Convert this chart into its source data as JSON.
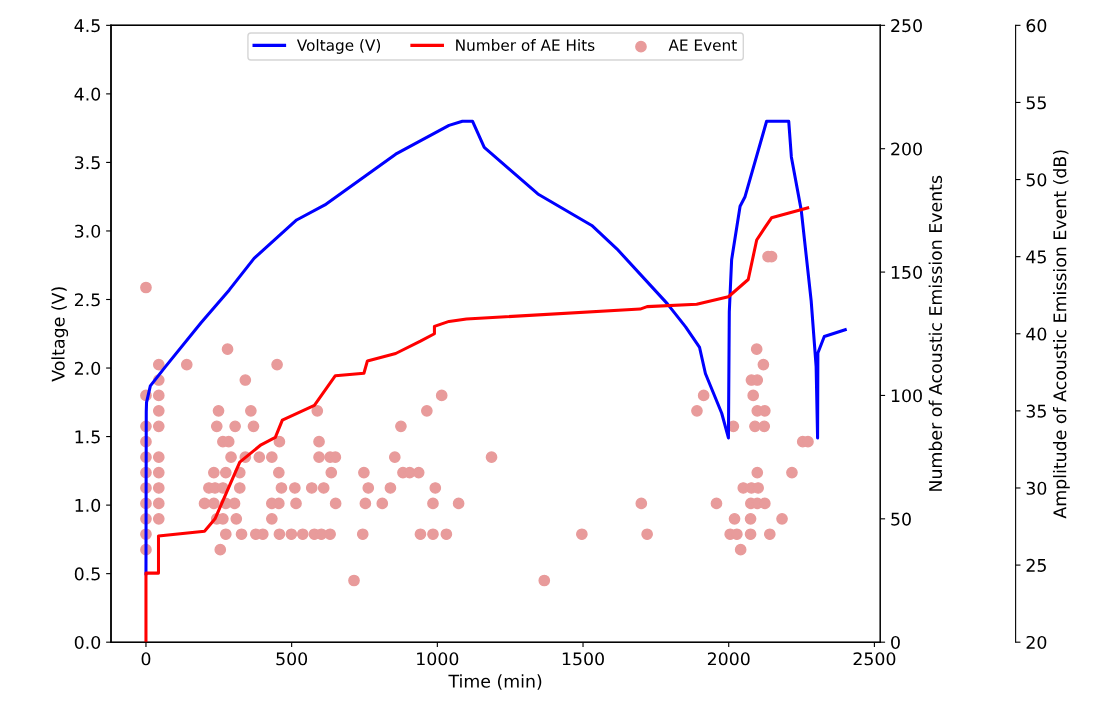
{
  "chart_data": {
    "type": "line",
    "xlabel": "Time (min)",
    "ylabel": "Voltage (V)",
    "y2label": "Number of Acoustic Emission Events",
    "y3label": "Amplitude of Acoustic Emission Event (dB)",
    "xlim": [
      -120,
      2520
    ],
    "xticks": [
      0,
      500,
      1000,
      1500,
      2000,
      2500
    ],
    "ylim": [
      0,
      4.5
    ],
    "yticks": [
      {
        "value": 0,
        "label": "0.0"
      },
      {
        "value": 0.5,
        "label": "0.5"
      },
      {
        "value": 1,
        "label": "1.0"
      },
      {
        "value": 1.5,
        "label": "1.5"
      },
      {
        "value": 2,
        "label": "2.0"
      },
      {
        "value": 2.5,
        "label": "2.5"
      },
      {
        "value": 3,
        "label": "3.0"
      },
      {
        "value": 3.5,
        "label": "3.5"
      },
      {
        "value": 4,
        "label": "4.0"
      },
      {
        "value": 4.5,
        "label": "4.5"
      }
    ],
    "y2lim": [
      0,
      250
    ],
    "y2ticks": [
      0,
      50,
      100,
      150,
      200,
      250
    ],
    "y3lim": [
      20,
      60
    ],
    "y3ticks": [
      20,
      25,
      30,
      35,
      40,
      45,
      50,
      55,
      60
    ],
    "legend": "top",
    "grid": false,
    "series": [
      {
        "name": "Voltage (V)",
        "color": "#0000ff",
        "marker": "none",
        "line_style": "solid",
        "x": [
          0,
          1,
          2,
          15,
          67,
          189,
          286,
          371,
          517,
          614,
          857,
          1040,
          1086,
          1121,
          1161,
          1345,
          1530,
          1616,
          1789,
          1852,
          1900,
          1920,
          1976,
          1999,
          2002,
          2010,
          2039,
          2056,
          2130,
          2206,
          2215,
          2249,
          2283,
          2300,
          2305,
          2306,
          2328,
          2400
        ],
        "values": [
          0.5,
          1.68,
          1.75,
          1.87,
          2.01,
          2.33,
          2.57,
          2.8,
          3.08,
          3.19,
          3.56,
          3.77,
          3.8,
          3.8,
          3.61,
          3.27,
          3.04,
          2.87,
          2.47,
          2.3,
          2.15,
          1.96,
          1.67,
          1.49,
          2.41,
          2.79,
          3.18,
          3.25,
          3.8,
          3.8,
          3.54,
          3.15,
          2.49,
          2.01,
          1.49,
          2.11,
          2.23,
          2.28
        ]
      },
      {
        "name": "Number of AE Hits",
        "axis": "y2",
        "color": "#ff0000",
        "marker": "none",
        "line_style": "solid",
        "x": [
          0,
          0,
          43,
          43,
          201,
          237,
          274,
          322,
          395,
          444,
          468,
          578,
          650,
          748,
          760,
          857,
          942,
          990,
          990,
          1040,
          1100,
          1696,
          1720,
          1890,
          1999,
          2067,
          2096,
          2124,
          2147,
          2271
        ],
        "values": [
          0,
          28,
          28,
          43,
          45,
          50,
          60,
          73,
          80,
          83,
          90,
          96,
          108,
          109,
          114,
          117,
          122,
          125,
          128,
          130,
          131,
          135,
          136,
          137,
          140,
          147,
          163,
          168,
          172,
          176
        ]
      },
      {
        "name": "AE Event",
        "type": "scatter",
        "axis": "y3",
        "color": "#e89b9b",
        "marker": "circle",
        "x": [
          0,
          0,
          0,
          0,
          0,
          0,
          0,
          0,
          0,
          0,
          0,
          44,
          44,
          44,
          44,
          44,
          44,
          44,
          44,
          44,
          44,
          140,
          280,
          450,
          341,
          1015,
          249,
          360,
          588,
          964,
          243,
          306,
          369,
          875,
          264,
          284,
          458,
          594,
          292,
          341,
          389,
          432,
          594,
          632,
          650,
          854,
          1186,
          233,
          274,
          322,
          456,
          636,
          748,
          882,
          905,
          936,
          216,
          237,
          264,
          322,
          465,
          511,
          569,
          610,
          763,
          839,
          993,
          201,
          233,
          274,
          304,
          432,
          456,
          515,
          651,
          753,
          811,
          985,
          1073,
          1700,
          1958,
          243,
          264,
          310,
          432,
          274,
          328,
          377,
          401,
          458,
          499,
          538,
          578,
          602,
          632,
          744,
          942,
          985,
          1031,
          1496,
          1720,
          255,
          714,
          1367,
          1914,
          1891,
          2135,
          2147,
          2096,
          2119,
          2078,
          2098,
          2084,
          2098,
          2124,
          2016,
          2090,
          2122,
          2254,
          2272,
          2098,
          2217,
          2050,
          2078,
          2101,
          2076,
          2098,
          2124,
          2020,
          2075,
          2183,
          2005,
          2028,
          2075,
          2141,
          2041
        ],
        "values": [
          43,
          36,
          34,
          33,
          32,
          31,
          30,
          29,
          28,
          27,
          26,
          38,
          37,
          36,
          35,
          34,
          32,
          31,
          30,
          29,
          28,
          38,
          39,
          38,
          37,
          36,
          35,
          35,
          35,
          35,
          34,
          34,
          34,
          34,
          33,
          33,
          33,
          33,
          32,
          32,
          32,
          32,
          32,
          32,
          32,
          32,
          32,
          31,
          31,
          31,
          31,
          31,
          31,
          31,
          31,
          31,
          30,
          30,
          30,
          30,
          30,
          30,
          30,
          30,
          30,
          30,
          30,
          29,
          29,
          29,
          29,
          29,
          29,
          29,
          29,
          29,
          29,
          29,
          29,
          29,
          29,
          28,
          28,
          28,
          28,
          27,
          27,
          27,
          27,
          27,
          27,
          27,
          27,
          27,
          27,
          27,
          27,
          27,
          27,
          27,
          27,
          26,
          24,
          24,
          36,
          35,
          45,
          45,
          39,
          38,
          37,
          37,
          36,
          35,
          35,
          34,
          34,
          34,
          33,
          33,
          31,
          31,
          30,
          30,
          30,
          29,
          29,
          29,
          28,
          28,
          28,
          27,
          27,
          27,
          27,
          26
        ]
      }
    ]
  }
}
